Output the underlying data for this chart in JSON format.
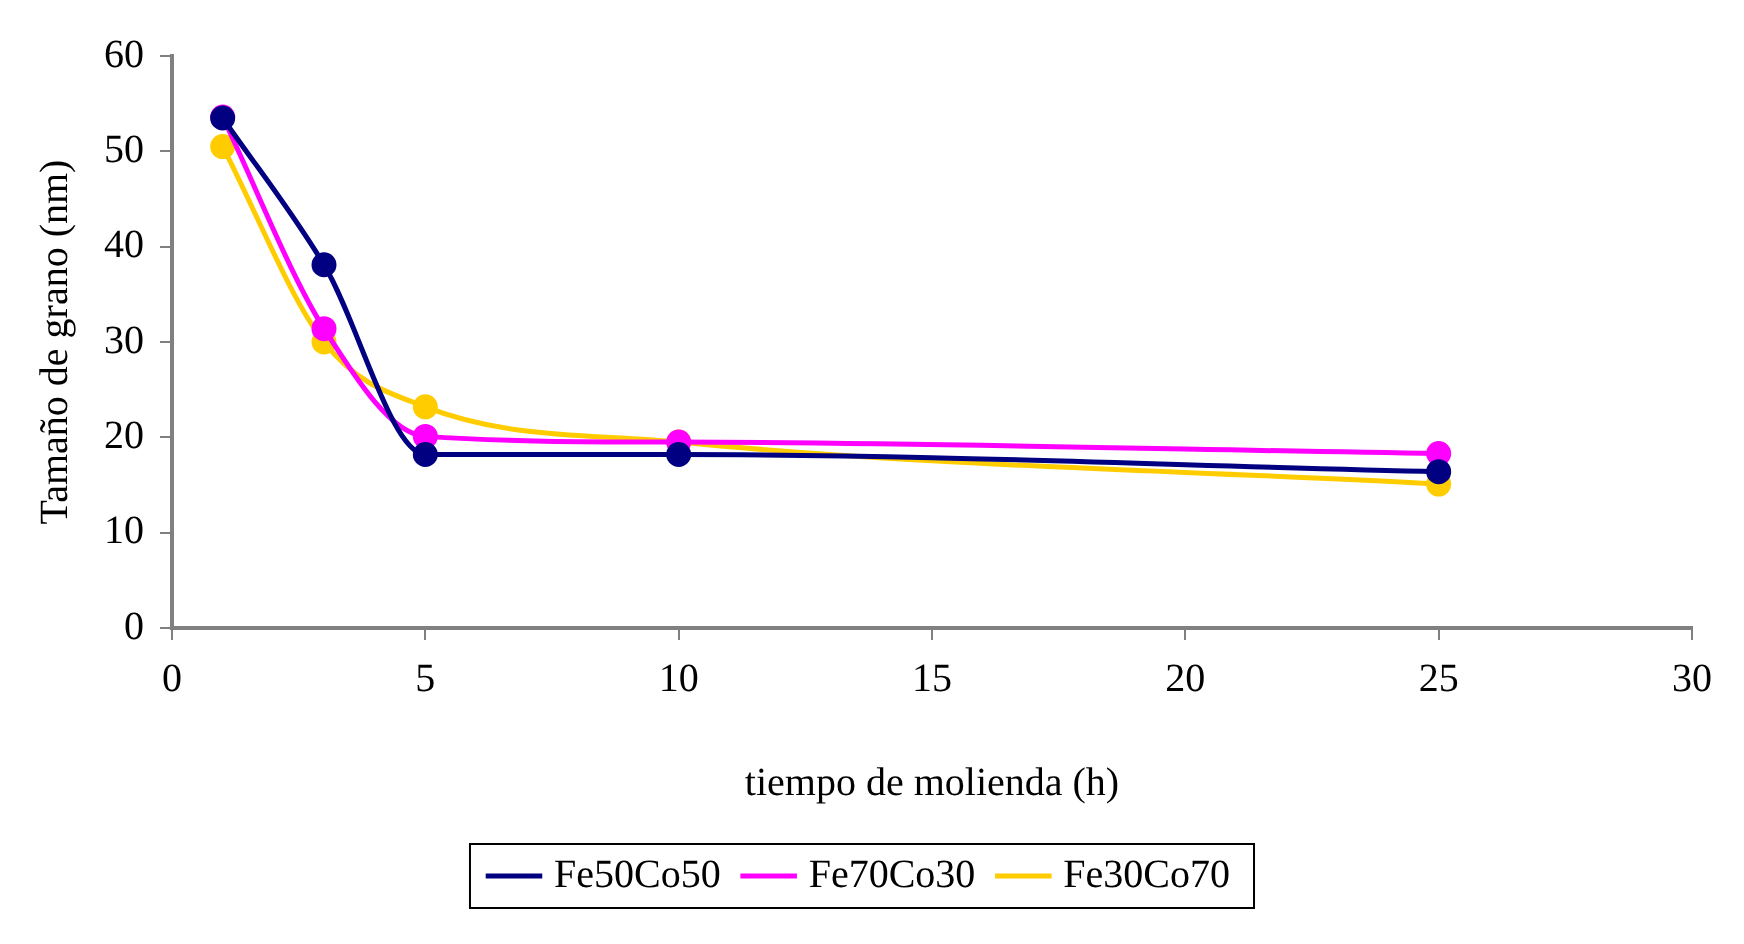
{
  "chart_data": {
    "type": "line",
    "xlabel": "tiempo de molienda (h)",
    "ylabel": "Tamaño de grano (nm)",
    "x": [
      1,
      3,
      5,
      10,
      25
    ],
    "series": [
      {
        "name": "Fe50Co50",
        "color": "#000080",
        "values": [
          53.5,
          38.1,
          18.2,
          18.2,
          16.4
        ]
      },
      {
        "name": "Fe70Co30",
        "color": "#ff00ff",
        "values": [
          53.6,
          31.4,
          20.1,
          19.5,
          18.3
        ]
      },
      {
        "name": "Fe30Co70",
        "color": "#ffcc00",
        "values": [
          50.5,
          30.0,
          23.2,
          19.5,
          15.1
        ]
      }
    ],
    "xlim": [
      0,
      30
    ],
    "xticks": [
      0,
      5,
      10,
      15,
      20,
      25,
      30
    ],
    "ylim": [
      0,
      60
    ],
    "yticks": [
      0,
      10,
      20,
      30,
      40,
      50,
      60
    ],
    "grid": false,
    "legend": "bottom",
    "marker": "circle",
    "line_style": "solid"
  }
}
